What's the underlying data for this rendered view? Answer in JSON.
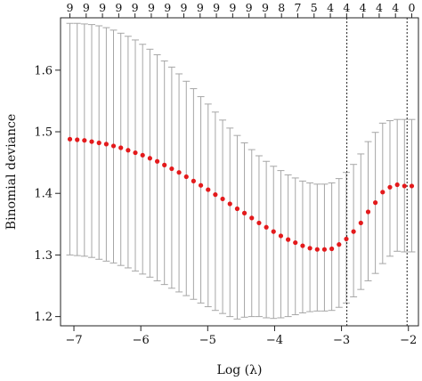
{
  "chart_data": {
    "type": "line",
    "xlabel": "Log (λ)",
    "ylabel": "Binomial deviance",
    "x_ticks": [
      -7,
      -6,
      -5,
      -4,
      -3,
      -2
    ],
    "y_ticks": [
      1.2,
      1.3,
      1.4,
      1.5,
      1.6
    ],
    "xlim": [
      -7.2,
      -1.85
    ],
    "ylim": [
      1.185,
      1.685
    ],
    "grid": false,
    "legend": "none",
    "top_axis_labels": [
      "9",
      "9",
      "9",
      "9",
      "9",
      "9",
      "9",
      "9",
      "9",
      "9",
      "9",
      "9",
      "9",
      "8",
      "7",
      "5",
      "4",
      "4",
      "4",
      "4",
      "4",
      "0"
    ],
    "vertical_lines": [
      -2.92,
      -2.02
    ],
    "series": [
      {
        "color": "#e31a1c",
        "error_bar_color": "#a6a6a6",
        "x": [
          -7.06,
          -6.951,
          -6.843,
          -6.734,
          -6.625,
          -6.516,
          -6.408,
          -6.299,
          -6.19,
          -6.082,
          -5.973,
          -5.864,
          -5.755,
          -5.647,
          -5.538,
          -5.429,
          -5.32,
          -5.212,
          -5.103,
          -4.994,
          -4.886,
          -4.777,
          -4.668,
          -4.559,
          -4.451,
          -4.342,
          -4.233,
          -4.124,
          -4.016,
          -3.907,
          -3.798,
          -3.69,
          -3.581,
          -3.472,
          -3.363,
          -3.255,
          -3.146,
          -3.037,
          -2.928,
          -2.82,
          -2.711,
          -2.602,
          -2.494,
          -2.385,
          -2.276,
          -2.167,
          -2.059,
          -1.95
        ],
        "y": [
          1.488,
          1.487,
          1.486,
          1.484,
          1.482,
          1.48,
          1.477,
          1.474,
          1.47,
          1.466,
          1.462,
          1.457,
          1.452,
          1.446,
          1.44,
          1.434,
          1.427,
          1.42,
          1.413,
          1.406,
          1.398,
          1.391,
          1.383,
          1.375,
          1.368,
          1.36,
          1.352,
          1.345,
          1.338,
          1.331,
          1.325,
          1.32,
          1.315,
          1.311,
          1.309,
          1.309,
          1.31,
          1.317,
          1.326,
          1.338,
          1.352,
          1.37,
          1.385,
          1.402,
          1.41,
          1.414,
          1.412,
          1.412
        ],
        "upper": [
          1.676,
          1.676,
          1.675,
          1.674,
          1.672,
          1.669,
          1.665,
          1.66,
          1.655,
          1.649,
          1.642,
          1.634,
          1.625,
          1.615,
          1.605,
          1.594,
          1.582,
          1.57,
          1.557,
          1.545,
          1.532,
          1.519,
          1.506,
          1.494,
          1.482,
          1.471,
          1.461,
          1.452,
          1.444,
          1.437,
          1.43,
          1.425,
          1.42,
          1.417,
          1.415,
          1.415,
          1.417,
          1.424,
          1.434,
          1.447,
          1.464,
          1.484,
          1.499,
          1.514,
          1.518,
          1.52,
          1.52,
          1.52
        ],
        "lower": [
          1.3,
          1.299,
          1.298,
          1.296,
          1.293,
          1.29,
          1.287,
          1.283,
          1.279,
          1.274,
          1.269,
          1.264,
          1.258,
          1.252,
          1.246,
          1.24,
          1.234,
          1.228,
          1.222,
          1.216,
          1.21,
          1.205,
          1.2,
          1.196,
          1.199,
          1.2,
          1.2,
          1.198,
          1.197,
          1.198,
          1.2,
          1.203,
          1.206,
          1.208,
          1.209,
          1.209,
          1.21,
          1.215,
          1.222,
          1.232,
          1.244,
          1.258,
          1.27,
          1.286,
          1.298,
          1.306,
          1.305,
          1.305
        ]
      }
    ]
  }
}
